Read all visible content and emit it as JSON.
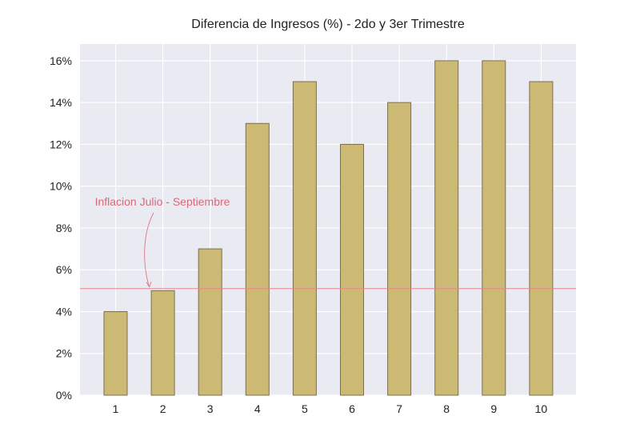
{
  "chart_data": {
    "type": "bar",
    "title": "Diferencia de Ingresos (%) - 2do y 3er Trimestre",
    "xlabel": "",
    "ylabel": "",
    "categories": [
      "1",
      "2",
      "3",
      "4",
      "5",
      "6",
      "7",
      "8",
      "9",
      "10"
    ],
    "values": [
      4,
      5,
      7,
      13,
      15,
      12,
      14,
      16,
      16,
      15
    ],
    "ylim": [
      0,
      16.8
    ],
    "yticks": [
      0,
      2,
      4,
      6,
      8,
      10,
      12,
      14,
      16
    ],
    "ytick_labels": [
      "0%",
      "2%",
      "4%",
      "6%",
      "8%",
      "10%",
      "12%",
      "14%",
      "16%"
    ],
    "grid": true,
    "reference_line": {
      "y": 5.1
    },
    "annotation": {
      "text": "Inflacion Julio - Septiembre",
      "target_category": "2",
      "target_y": 5.1
    },
    "colors": {
      "background": "#eaeaf2",
      "grid": "#ffffff",
      "bar_fill": "#ccb974",
      "bar_edge": "#7a7050",
      "reference_line": "#e3888e",
      "annotation": "#d96a76"
    }
  }
}
